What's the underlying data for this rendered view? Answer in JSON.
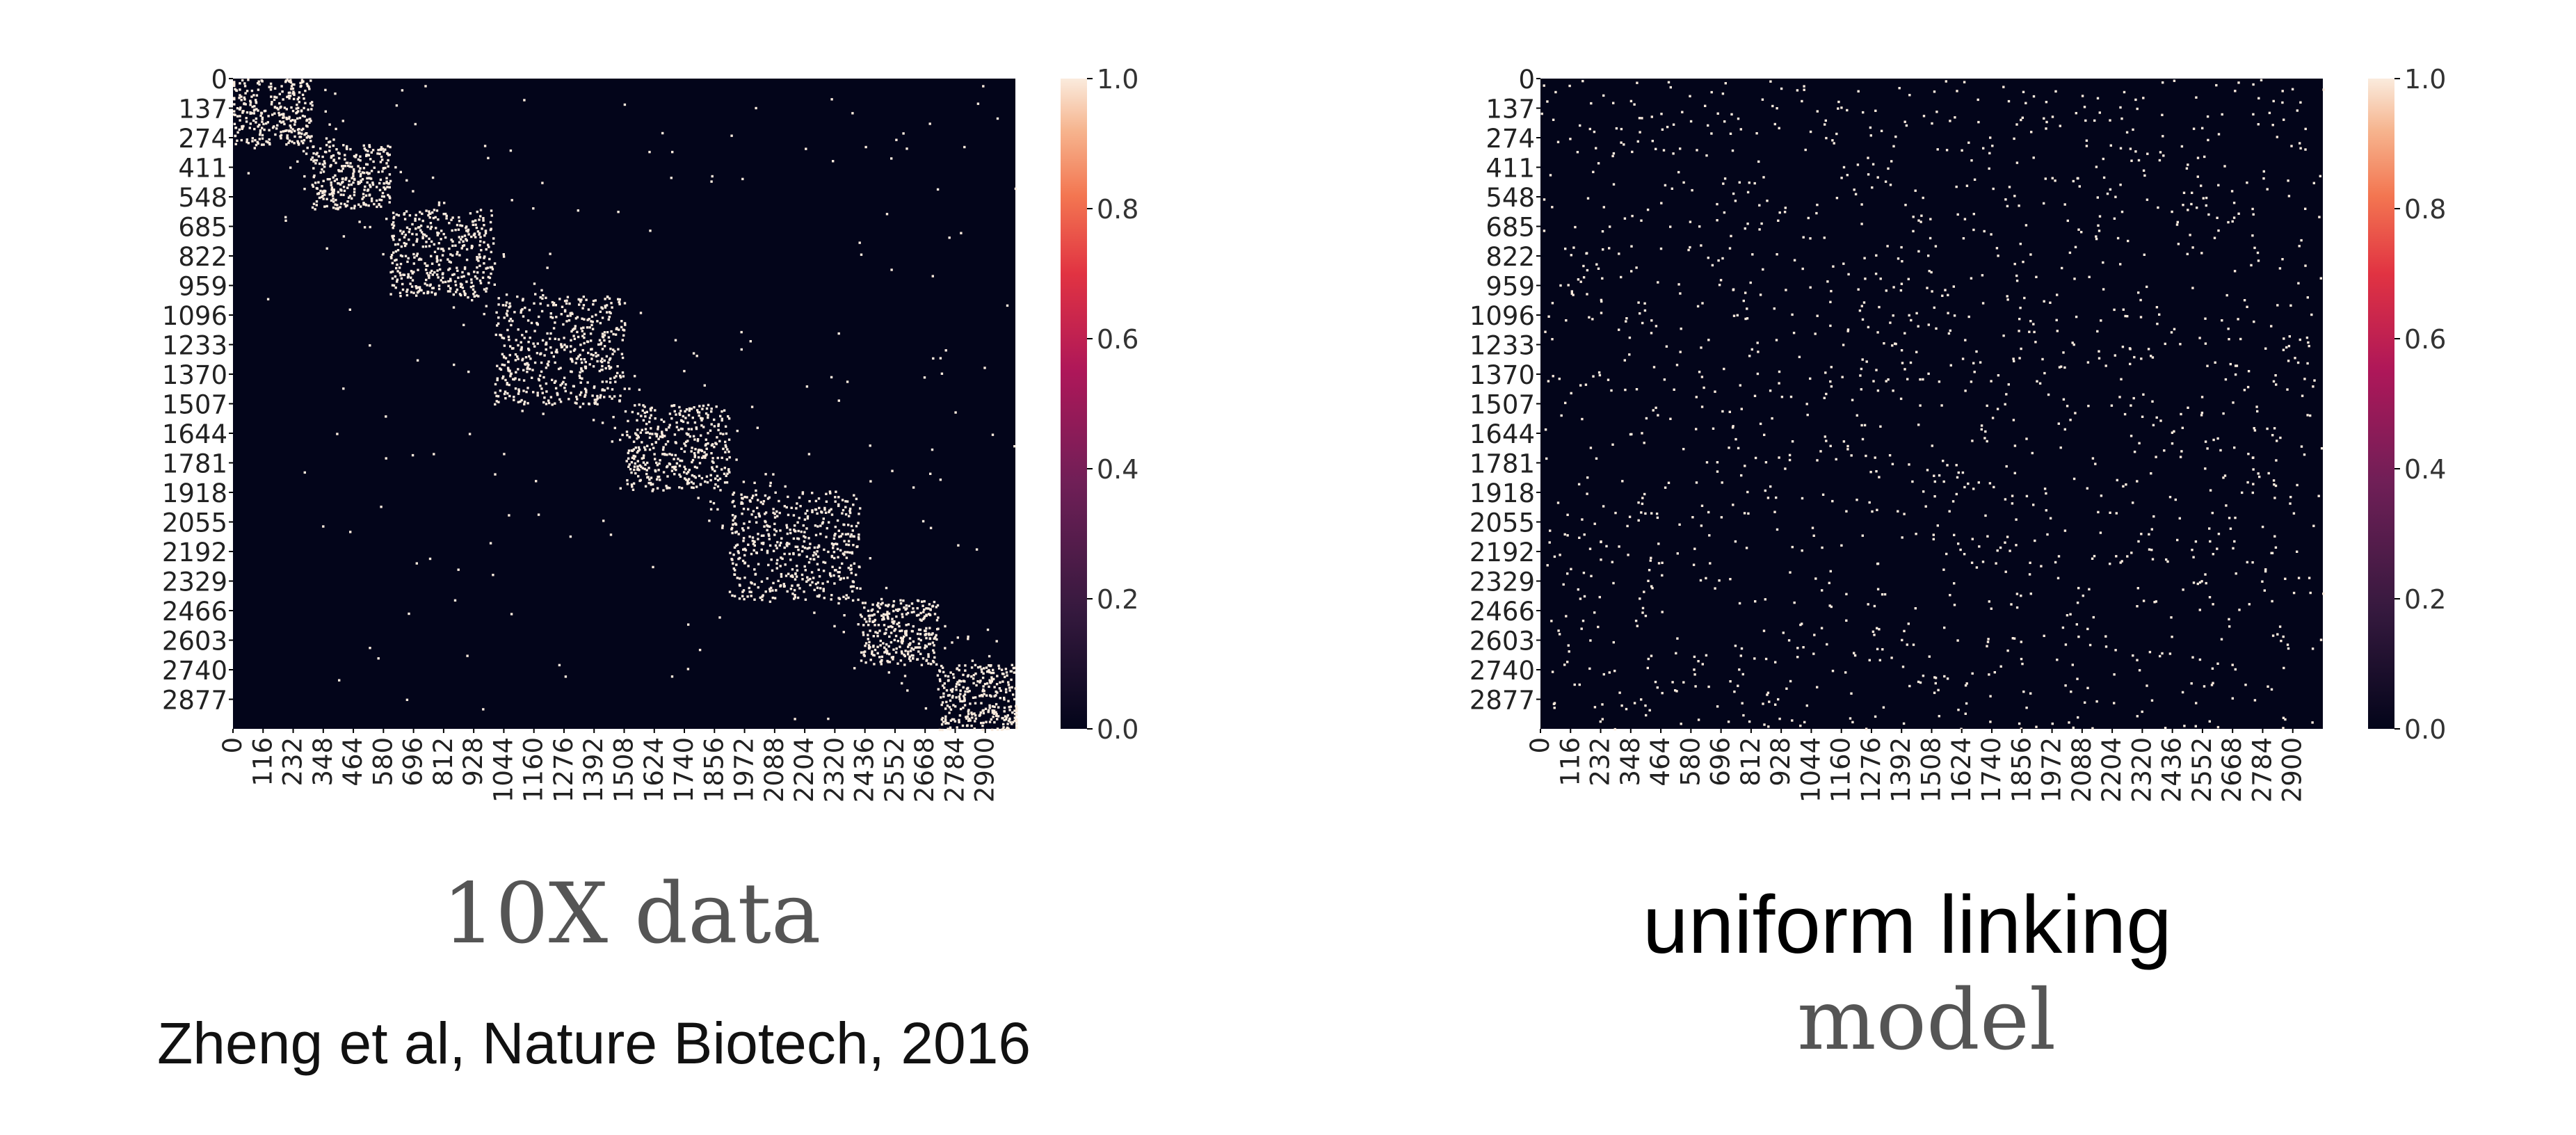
{
  "chart_data": [
    {
      "type": "heatmap",
      "title": "",
      "pattern": "block-diagonal",
      "matrix_size": 3000,
      "y_tick_labels": [
        "0",
        "137",
        "274",
        "411",
        "548",
        "685",
        "822",
        "959",
        "1096",
        "1233",
        "1370",
        "1507",
        "1644",
        "1781",
        "1918",
        "2055",
        "2192",
        "2329",
        "2466",
        "2603",
        "2740",
        "2877"
      ],
      "x_tick_labels": [
        "0",
        "116",
        "232",
        "348",
        "464",
        "580",
        "696",
        "812",
        "928",
        "1044",
        "1160",
        "1276",
        "1392",
        "1508",
        "1624",
        "1740",
        "1856",
        "1972",
        "2088",
        "2204",
        "2320",
        "2436",
        "2552",
        "2668",
        "2784",
        "2900"
      ],
      "colorbar": {
        "min": 0.0,
        "max": 1.0,
        "tick_labels": [
          "0.0",
          "0.2",
          "0.4",
          "0.6",
          "0.8",
          "1.0"
        ]
      },
      "blocks": [
        [
          0,
          300
        ],
        [
          300,
          600
        ],
        [
          600,
          1000
        ],
        [
          1000,
          1500
        ],
        [
          1500,
          1900
        ],
        [
          1900,
          2400
        ],
        [
          2400,
          2700
        ],
        [
          2700,
          3000
        ]
      ],
      "colors": {
        "background": "#03051A",
        "point": "#FAEBDD"
      }
    },
    {
      "type": "heatmap",
      "title": "",
      "pattern": "uniform-random",
      "matrix_size": 3000,
      "y_tick_labels": [
        "0",
        "137",
        "274",
        "411",
        "548",
        "685",
        "822",
        "959",
        "1096",
        "1233",
        "1370",
        "1507",
        "1644",
        "1781",
        "1918",
        "2055",
        "2192",
        "2329",
        "2466",
        "2603",
        "2740",
        "2877"
      ],
      "x_tick_labels": [
        "0",
        "116",
        "232",
        "348",
        "464",
        "580",
        "696",
        "812",
        "928",
        "1044",
        "1160",
        "1276",
        "1392",
        "1508",
        "1624",
        "1740",
        "1856",
        "1972",
        "2088",
        "2204",
        "2320",
        "2436",
        "2552",
        "2668",
        "2784",
        "2900"
      ],
      "colorbar": {
        "min": 0.0,
        "max": 1.0,
        "tick_labels": [
          "0.0",
          "0.2",
          "0.4",
          "0.6",
          "0.8",
          "1.0"
        ]
      },
      "colors": {
        "background": "#03051A",
        "point": "#FAEBDD"
      }
    }
  ],
  "captions": {
    "left_title": "10X data",
    "left_citation": "Zheng et al, Nature Biotech, 2016",
    "right_title_line1": "uniform linking",
    "right_title_line2": "model"
  }
}
